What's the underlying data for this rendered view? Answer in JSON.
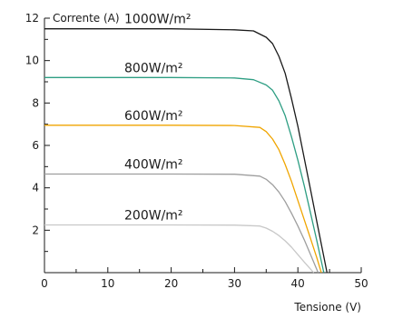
{
  "chart_data": {
    "type": "line",
    "title": "",
    "xlabel": "Tensione (V)",
    "ylabel": "Corrente (A)",
    "xlim": [
      0,
      50
    ],
    "ylim": [
      0,
      12
    ],
    "x_ticks": [
      0,
      10,
      20,
      30,
      40,
      50
    ],
    "y_ticks": [
      2,
      4,
      6,
      8,
      10,
      12
    ],
    "grid": false,
    "legend": "none",
    "series": [
      {
        "name": "1000W/m²",
        "color": "#1a1a1a",
        "x": [
          0,
          10,
          20,
          30,
          33,
          35,
          36,
          37,
          38,
          39,
          40,
          41,
          42,
          43,
          44,
          44.6
        ],
        "y": [
          11.5,
          11.5,
          11.5,
          11.45,
          11.4,
          11.1,
          10.8,
          10.2,
          9.4,
          8.2,
          6.9,
          5.4,
          3.9,
          2.4,
          0.9,
          0
        ]
      },
      {
        "name": "800W/m²",
        "color": "#2e9e83",
        "x": [
          0,
          10,
          20,
          30,
          33,
          35,
          36,
          37,
          38,
          39,
          40,
          41,
          42,
          43,
          44.1
        ],
        "y": [
          9.2,
          9.2,
          9.2,
          9.18,
          9.1,
          8.85,
          8.6,
          8.1,
          7.4,
          6.4,
          5.3,
          4.1,
          2.8,
          1.5,
          0
        ]
      },
      {
        "name": "600W/m²",
        "color": "#f0a500",
        "x": [
          0,
          10,
          20,
          30,
          34,
          35,
          36,
          37,
          38,
          39,
          40,
          41,
          42,
          43,
          43.7
        ],
        "y": [
          6.95,
          6.95,
          6.95,
          6.94,
          6.85,
          6.65,
          6.3,
          5.8,
          5.1,
          4.3,
          3.4,
          2.5,
          1.6,
          0.7,
          0
        ]
      },
      {
        "name": "400W/m²",
        "color": "#9e9e9e",
        "x": [
          0,
          10,
          20,
          30,
          34,
          35,
          36,
          37,
          38,
          39,
          40,
          41,
          42,
          43.2
        ],
        "y": [
          4.65,
          4.65,
          4.65,
          4.64,
          4.55,
          4.4,
          4.15,
          3.8,
          3.35,
          2.8,
          2.2,
          1.55,
          0.85,
          0
        ]
      },
      {
        "name": "200W/m²",
        "color": "#c8c8c8",
        "x": [
          0,
          10,
          20,
          30,
          34,
          35,
          36,
          37,
          38,
          39,
          40,
          41,
          42.5
        ],
        "y": [
          2.25,
          2.25,
          2.25,
          2.24,
          2.2,
          2.1,
          1.95,
          1.75,
          1.5,
          1.2,
          0.85,
          0.5,
          0
        ]
      }
    ]
  }
}
